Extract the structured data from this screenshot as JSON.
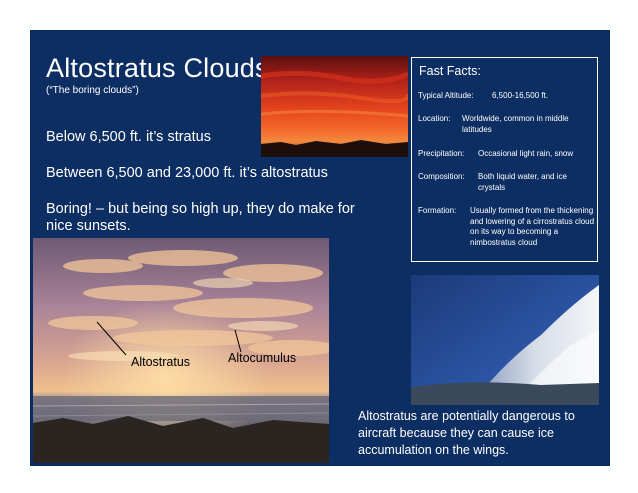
{
  "slide": {
    "title": "Altostratus Clouds",
    "subtitle": "(“The boring clouds”)",
    "body": [
      "Below 6,500 ft. it’s stratus",
      "Between 6,500 and 23,000 ft. it’s altostratus",
      "Boring! – but being so high up, they do make for nice sunsets."
    ],
    "background_color": "#0d2e62"
  },
  "fast_facts": {
    "title": "Fast Facts:",
    "items": [
      {
        "key": "Typical Altitude:",
        "value": "6,500-16,500 ft."
      },
      {
        "key": "Location:",
        "value": "Worldwide, common in middle latitudes"
      },
      {
        "key": "Precipitation:",
        "value": "Occasional light rain, snow"
      },
      {
        "key": "Composition:",
        "value": "Both liquid water, and ice crystals"
      },
      {
        "key": "Formation:",
        "value": "Usually formed from the thickening and lowering of a cirrostratus cloud on its way to becoming a nimbostratus cloud"
      }
    ]
  },
  "photo_labels": {
    "altostratus": "Altostratus",
    "altocumulus": "Altocumulus"
  },
  "caption": "Altostratus are potentially dangerous to aircraft because they can cause ice accumulation on the wings."
}
